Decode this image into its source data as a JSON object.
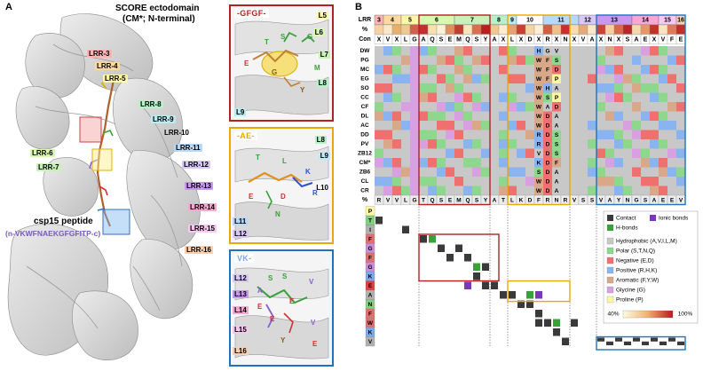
{
  "panelA": {
    "letter": "A",
    "title_line1": "SCORE ectodomain",
    "title_line2": "(CM*; N-terminal)",
    "peptide_label": "csp15 peptide",
    "peptide_seq": "(n-VKWFNAEKGFGFITP-c)",
    "lrr_labels": [
      {
        "text": "LRR-3",
        "color": "#ffb3b3"
      },
      {
        "text": "LRR-4",
        "color": "#ffd9a0"
      },
      {
        "text": "LRR-5",
        "color": "#fff6a8"
      },
      {
        "text": "LRR-8",
        "color": "#b8f0c8"
      },
      {
        "text": "LRR-9",
        "color": "#b8ecf0"
      },
      {
        "text": "LRR-10",
        "color": "#ffffff"
      },
      {
        "text": "LRR-11",
        "color": "#b8d8f8"
      },
      {
        "text": "LRR-6",
        "color": "#d8f8b0"
      },
      {
        "text": "LRR-7",
        "color": "#c8f0b8"
      },
      {
        "text": "LRR-12",
        "color": "#d8c8f8"
      },
      {
        "text": "LRR-13",
        "color": "#c898f0"
      },
      {
        "text": "LRR-14",
        "color": "#f8a8d0"
      },
      {
        "text": "LRR-15",
        "color": "#f8c8f0"
      },
      {
        "text": "LRR-16",
        "color": "#f8d0b0"
      }
    ]
  },
  "insets": [
    {
      "title": "-GFGF-",
      "color": "#b22222",
      "labels": [
        "L5",
        "L6",
        "L7",
        "L8",
        "L9",
        "T",
        "S",
        "G",
        "E",
        "G",
        "M",
        "Y"
      ]
    },
    {
      "title": "-AE-",
      "color": "#e8a800",
      "labels": [
        "L8",
        "L9",
        "L10",
        "L11",
        "L12",
        "T",
        "L",
        "K",
        "R",
        "D",
        "N",
        "E"
      ]
    },
    {
      "title": "VK-",
      "color": "#1e73be",
      "labels": [
        "L12",
        "L13",
        "L14",
        "L15",
        "L16",
        "S",
        "S",
        "V",
        "A",
        "E",
        "E",
        "E",
        "V",
        "Y",
        "E"
      ]
    }
  ],
  "panelB": {
    "letter": "B",
    "lrr_row_label": "LRR",
    "pct_row_label": "%",
    "con_row_label": "Con",
    "bottom_row_label": "%",
    "lrr_numbers": [
      "3",
      "4",
      "5",
      "6",
      "7",
      "8",
      "9",
      "10",
      "11",
      "12",
      "13",
      "14",
      "15",
      "16"
    ],
    "lrr_colors": [
      "#ffb3b3",
      "#ffd9a0",
      "#fff6a8",
      "#d8f8b0",
      "#c8f0b8",
      "#b8f0c8",
      "#b8ecf0",
      "#ffffff",
      "#b8d8f8",
      "#d8c8f8",
      "#c898f0",
      "#f8a8d0",
      "#f8c8f0",
      "#f8d0b0"
    ],
    "consensus": [
      "X",
      "V",
      "X",
      "L",
      "G",
      "A",
      "Q",
      "S",
      "E",
      "M",
      "Q",
      "S",
      "Y",
      "A",
      "X",
      "L",
      "X",
      "D",
      "X",
      "R",
      "X",
      "N",
      "X",
      "V",
      "A",
      "X",
      "N",
      "X",
      "S",
      "A",
      "E",
      "X",
      "V",
      "F",
      "E"
    ],
    "bottom_seq": [
      "R",
      "V",
      "V",
      "L",
      "G",
      "T",
      "Q",
      "S",
      "E",
      "M",
      "Q",
      "S",
      "Y",
      "A",
      "T",
      "L",
      "K",
      "D",
      "F",
      "R",
      "N",
      "R",
      "V",
      "S",
      "S",
      "V",
      "A",
      "Y",
      "N",
      "G",
      "S",
      "A",
      "E",
      "E",
      "V",
      "Y",
      "E"
    ],
    "species": [
      "DW",
      "PG",
      "MC",
      "EG",
      "SO",
      "CC",
      "CF",
      "DL",
      "AC",
      "DD",
      "PV",
      "ZB12",
      "CM*",
      "ZB6",
      "CL",
      "CR"
    ],
    "highlight_col_letters": [
      [
        "H",
        "G",
        "V"
      ],
      [
        "W",
        "F",
        "S"
      ],
      [
        "W",
        "F",
        "D"
      ],
      [
        "W",
        "F",
        "P"
      ],
      [
        "W",
        "H",
        "A"
      ],
      [
        "W",
        "S",
        "P"
      ],
      [
        "W",
        "A",
        "D"
      ],
      [
        "W",
        "D",
        "A"
      ],
      [
        "W",
        "D",
        "A"
      ],
      [
        "R",
        "D",
        "S"
      ],
      [
        "R",
        "D",
        "S"
      ],
      [
        "V",
        "D",
        "S"
      ],
      [
        "K",
        "D",
        "F"
      ],
      [
        "S",
        "D",
        "A"
      ],
      [
        "W",
        "D",
        "A"
      ],
      [
        "W",
        "D",
        "A"
      ]
    ],
    "peptide_residues": [
      "P",
      "T",
      "I",
      "F",
      "G",
      "F",
      "G",
      "K",
      "E",
      "A",
      "N",
      "F",
      "W",
      "K",
      "V"
    ],
    "peptide_colors": [
      "#fff9a0",
      "#7ed27e",
      "#b0b0b0",
      "#e07070",
      "#c88ed8",
      "#e07070",
      "#c88ed8",
      "#7aa8e8",
      "#e04040",
      "#b0b0b0",
      "#7ed27e",
      "#e07070",
      "#e07070",
      "#7aa8e8",
      "#b0b0b0"
    ],
    "legend": {
      "contact": "Contact",
      "ionic": "Ionic bonds",
      "hbonds": "H-bonds",
      "categories": [
        {
          "label": "Hydrophobic (A,V,I,L,M)",
          "color": "#c8c8c8"
        },
        {
          "label": "Polar (S,T,N,Q)",
          "color": "#8ed88e"
        },
        {
          "label": "Negative (E,D)",
          "color": "#f07070"
        },
        {
          "label": "Positive (R,H,K)",
          "color": "#8ab4f0"
        },
        {
          "label": "Aromatic (F,Y,W)",
          "color": "#d8a888"
        },
        {
          "label": "Glycine (G)",
          "color": "#d8a0e0"
        },
        {
          "label": "Proline (P)",
          "color": "#fff6a0"
        }
      ],
      "scale_min": "40%",
      "scale_max": "100%"
    }
  }
}
